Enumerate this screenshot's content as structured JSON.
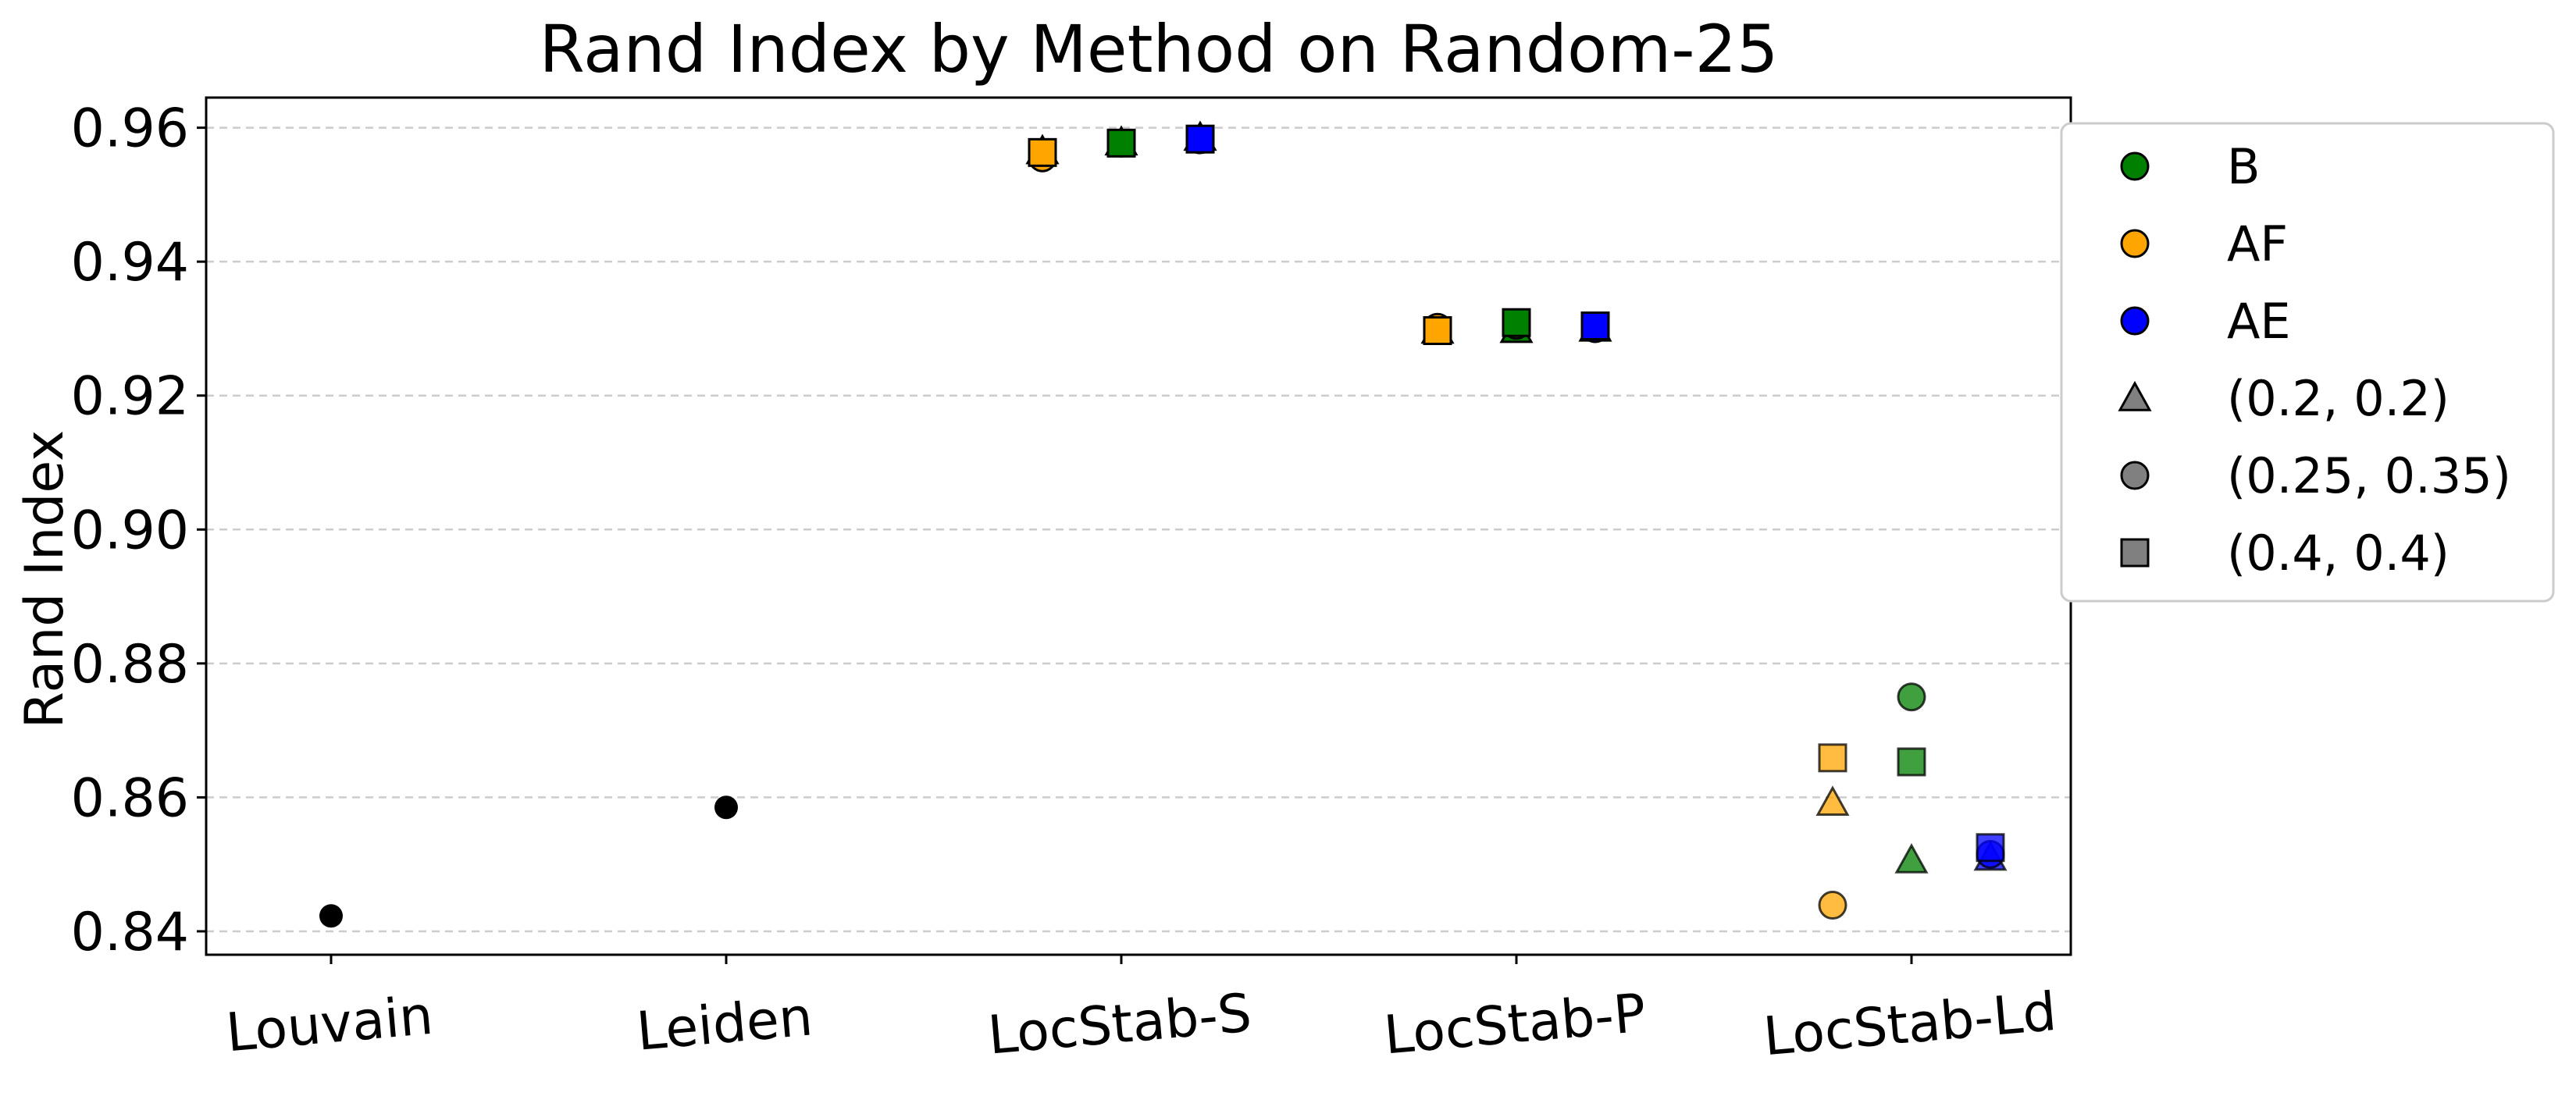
{
  "colors": {
    "B": "#008000",
    "AF": "#FFA500",
    "AE": "#0000FF",
    "gray": "#808080",
    "black": "#000000",
    "grid": "#cccccc"
  },
  "chart_data": {
    "type": "scatter",
    "title": "Rand Index by Method on Random-25",
    "xlabel": "",
    "ylabel": "Rand Index",
    "categories": [
      "Louvain",
      "Leiden",
      "LocStab-S",
      "LocStab-P",
      "LocStab-Ld"
    ],
    "ylim": [
      0.8365,
      0.9645
    ],
    "yticks": [
      0.84,
      0.86,
      0.88,
      0.9,
      0.92,
      0.94,
      0.96
    ],
    "ytick_labels": [
      "0.84",
      "0.86",
      "0.88",
      "0.90",
      "0.92",
      "0.94",
      "0.96"
    ],
    "grid": "horizontal dashed",
    "legend_position": "outside upper-right",
    "legend": [
      {
        "label": "B",
        "marker": "circle",
        "color": "#008000"
      },
      {
        "label": "AF",
        "marker": "circle",
        "color": "#FFA500"
      },
      {
        "label": "AE",
        "marker": "circle",
        "color": "#0000FF"
      },
      {
        "label": "(0.2, 0.2)",
        "marker": "triangle",
        "color": "#808080"
      },
      {
        "label": "(0.25, 0.35)",
        "marker": "circle",
        "color": "#808080"
      },
      {
        "label": "(0.4, 0.4)",
        "marker": "square",
        "color": "#808080"
      }
    ],
    "baselines": [
      {
        "category": "Louvain",
        "value": 0.8423
      },
      {
        "category": "Leiden",
        "value": 0.8585
      }
    ],
    "series": [
      {
        "group": "AF",
        "offset": -1,
        "category": "LocStab-S",
        "param": "(0.2, 0.2)",
        "value": 0.9565
      },
      {
        "group": "AF",
        "offset": -1,
        "category": "LocStab-S",
        "param": "(0.25, 0.35)",
        "value": 0.9555
      },
      {
        "group": "AF",
        "offset": -1,
        "category": "LocStab-S",
        "param": "(0.4, 0.4)",
        "value": 0.9563
      },
      {
        "group": "B",
        "offset": 0,
        "category": "LocStab-S",
        "param": "(0.2, 0.2)",
        "value": 0.9578
      },
      {
        "group": "B",
        "offset": 0,
        "category": "LocStab-S",
        "param": "(0.25, 0.35)",
        "value": 0.9577
      },
      {
        "group": "B",
        "offset": 0,
        "category": "LocStab-S",
        "param": "(0.4, 0.4)",
        "value": 0.9577
      },
      {
        "group": "AE",
        "offset": 1,
        "category": "LocStab-S",
        "param": "(0.2, 0.2)",
        "value": 0.9585
      },
      {
        "group": "AE",
        "offset": 1,
        "category": "LocStab-S",
        "param": "(0.25, 0.35)",
        "value": 0.9582
      },
      {
        "group": "AE",
        "offset": 1,
        "category": "LocStab-S",
        "param": "(0.4, 0.4)",
        "value": 0.9583
      },
      {
        "group": "AF",
        "offset": -1,
        "category": "LocStab-P",
        "param": "(0.2, 0.2)",
        "value": 0.9297
      },
      {
        "group": "AF",
        "offset": -1,
        "category": "LocStab-P",
        "param": "(0.25, 0.35)",
        "value": 0.9302
      },
      {
        "group": "AF",
        "offset": -1,
        "category": "LocStab-P",
        "param": "(0.4, 0.4)",
        "value": 0.9297
      },
      {
        "group": "B",
        "offset": 0,
        "category": "LocStab-P",
        "param": "(0.2, 0.2)",
        "value": 0.9298
      },
      {
        "group": "B",
        "offset": 0,
        "category": "LocStab-P",
        "param": "(0.25, 0.35)",
        "value": 0.9305
      },
      {
        "group": "B",
        "offset": 0,
        "category": "LocStab-P",
        "param": "(0.4, 0.4)",
        "value": 0.9309
      },
      {
        "group": "AE",
        "offset": 1,
        "category": "LocStab-P",
        "param": "(0.2, 0.2)",
        "value": 0.93
      },
      {
        "group": "AE",
        "offset": 1,
        "category": "LocStab-P",
        "param": "(0.25, 0.35)",
        "value": 0.93
      },
      {
        "group": "AE",
        "offset": 1,
        "category": "LocStab-P",
        "param": "(0.4, 0.4)",
        "value": 0.9304
      },
      {
        "group": "AF",
        "offset": -1,
        "category": "LocStab-Ld",
        "param": "(0.2, 0.2)",
        "value": 0.8592
      },
      {
        "group": "AF",
        "offset": -1,
        "category": "LocStab-Ld",
        "param": "(0.25, 0.35)",
        "value": 0.8439
      },
      {
        "group": "AF",
        "offset": -1,
        "category": "LocStab-Ld",
        "param": "(0.4, 0.4)",
        "value": 0.8659
      },
      {
        "group": "B",
        "offset": 0,
        "category": "LocStab-Ld",
        "param": "(0.2, 0.2)",
        "value": 0.8506
      },
      {
        "group": "B",
        "offset": 0,
        "category": "LocStab-Ld",
        "param": "(0.25, 0.35)",
        "value": 0.875
      },
      {
        "group": "B",
        "offset": 0,
        "category": "LocStab-Ld",
        "param": "(0.4, 0.4)",
        "value": 0.8653
      },
      {
        "group": "AE",
        "offset": 1,
        "category": "LocStab-Ld",
        "param": "(0.2, 0.2)",
        "value": 0.851
      },
      {
        "group": "AE",
        "offset": 1,
        "category": "LocStab-Ld",
        "param": "(0.25, 0.35)",
        "value": 0.8515
      },
      {
        "group": "AE",
        "offset": 1,
        "category": "LocStab-Ld",
        "param": "(0.4, 0.4)",
        "value": 0.8525
      }
    ]
  }
}
